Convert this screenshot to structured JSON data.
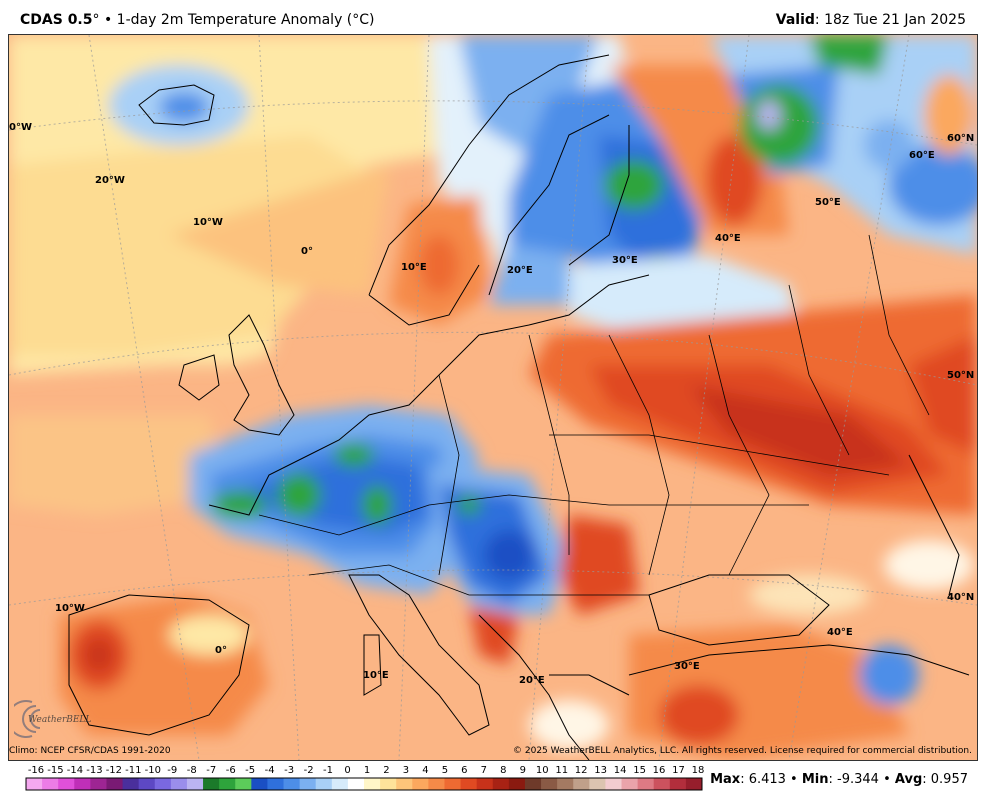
{
  "header": {
    "title_bold": "CDAS 0.5",
    "title_deg": "°",
    "title_rest": " • 1-day 2m Temperature Anomaly (°C)",
    "valid_label": "Valid",
    "valid_value": ": 18z Tue 21 Jan 2025"
  },
  "map": {
    "labels": [
      {
        "id": "lbl-0w-top",
        "text": "0°W"
      },
      {
        "id": "lbl-20w",
        "text": "20°W"
      },
      {
        "id": "lbl-10w-top",
        "text": "10°W"
      },
      {
        "id": "lbl-0-mid",
        "text": "0°"
      },
      {
        "id": "lbl-10e-top",
        "text": "10°E"
      },
      {
        "id": "lbl-20e-top",
        "text": "20°E"
      },
      {
        "id": "lbl-30e-top",
        "text": "30°E"
      },
      {
        "id": "lbl-40e-top",
        "text": "40°E"
      },
      {
        "id": "lbl-50e",
        "text": "50°E"
      },
      {
        "id": "lbl-60e",
        "text": "60°E"
      },
      {
        "id": "lbl-60n",
        "text": "60°N"
      },
      {
        "id": "lbl-50n",
        "text": "50°N"
      },
      {
        "id": "lbl-40n",
        "text": "40°N"
      },
      {
        "id": "lbl-10w-bot",
        "text": "10°W"
      },
      {
        "id": "lbl-0-bot",
        "text": "0°"
      },
      {
        "id": "lbl-10e-bot",
        "text": "10°E"
      },
      {
        "id": "lbl-20e-bot",
        "text": "20°E"
      },
      {
        "id": "lbl-30e-bot",
        "text": "30°E"
      },
      {
        "id": "lbl-40e-bot",
        "text": "40°E"
      }
    ]
  },
  "footer": {
    "climo": "Climo: NCEP CFSR/CDAS 1991-2020",
    "copyright": "© 2025 WeatherBELL Analytics, LLC. All rights reserved. License required for commercial distribution.",
    "logo_text": "WeatherBELL"
  },
  "colorbar": {
    "ticks": [
      "-16",
      "-15",
      "-14",
      "-13",
      "-12",
      "-11",
      "-10",
      "-9",
      "-8",
      "-7",
      "-6",
      "-5",
      "-4",
      "-3",
      "-2",
      "-1",
      "0",
      "1",
      "2",
      "3",
      "4",
      "5",
      "6",
      "7",
      "8",
      "9",
      "10",
      "11",
      "12",
      "13",
      "14",
      "15",
      "16",
      "17",
      "18"
    ],
    "colors": [
      "#f5a9f0",
      "#ec7ce6",
      "#e050da",
      "#c02fb8",
      "#9e2593",
      "#7a1a74",
      "#4a2f9c",
      "#5d48c4",
      "#7a68e0",
      "#9a8eec",
      "#bbb4f2",
      "#1b7a2a",
      "#2ea43c",
      "#5ccc5a",
      "#1a4fc4",
      "#2f70dc",
      "#4d8ee8",
      "#7bb0f0",
      "#a9d0f6",
      "#d6ebfb",
      "#ffffff",
      "#fff6c8",
      "#fee39a",
      "#fdc57a",
      "#fba85e",
      "#f58a48",
      "#ee6a32",
      "#e04a22",
      "#c8321a",
      "#a82214",
      "#8a1a10",
      "#6e3a2a",
      "#8a5a45",
      "#a47a62",
      "#c0a08a",
      "#dcc4b0",
      "#f3ccd0",
      "#eaa3aa",
      "#de7a84",
      "#cc525e",
      "#b22e3c",
      "#961e2c"
    ],
    "notes": "stats"
  },
  "stats": {
    "max_label": "Max",
    "max_value": ": 6.413 • ",
    "min_label": "Min",
    "min_value": ": -9.344 • ",
    "avg_label": "Avg",
    "avg_value": ": 0.957"
  }
}
